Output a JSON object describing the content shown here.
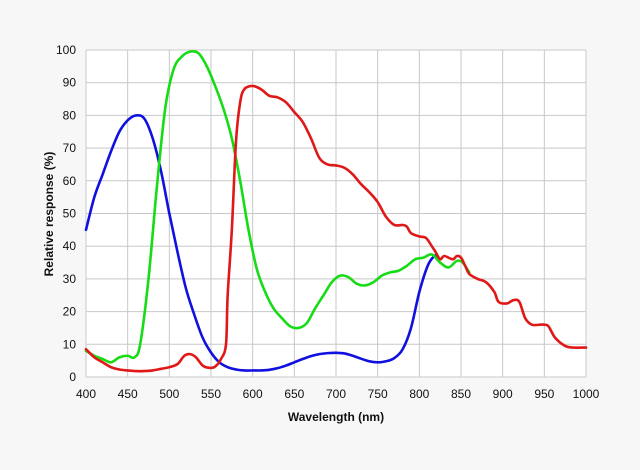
{
  "chart_data": {
    "type": "line",
    "title": "",
    "xlabel": "Wavelength (nm)",
    "ylabel": "Relative response (%)",
    "xlim": [
      400,
      1000
    ],
    "ylim": [
      0,
      100
    ],
    "grid": true,
    "legend": "none",
    "x_ticks": [
      "400",
      "450",
      "500",
      "550",
      "600",
      "650",
      "700",
      "750",
      "800",
      "850",
      "900",
      "950",
      "1000"
    ],
    "y_ticks": [
      "0",
      "10",
      "20",
      "30",
      "40",
      "50",
      "60",
      "70",
      "80",
      "90",
      "100"
    ],
    "series": [
      {
        "color": "#1010e0",
        "points": [
          [
            400,
            45
          ],
          [
            410,
            55
          ],
          [
            420,
            62
          ],
          [
            430,
            69
          ],
          [
            440,
            75
          ],
          [
            450,
            78.5
          ],
          [
            460,
            80
          ],
          [
            470,
            79
          ],
          [
            480,
            73
          ],
          [
            490,
            63
          ],
          [
            500,
            50
          ],
          [
            510,
            38
          ],
          [
            520,
            27
          ],
          [
            530,
            19
          ],
          [
            540,
            12
          ],
          [
            550,
            7.5
          ],
          [
            560,
            4.5
          ],
          [
            570,
            3
          ],
          [
            580,
            2.3
          ],
          [
            590,
            2
          ],
          [
            600,
            2
          ],
          [
            610,
            2
          ],
          [
            620,
            2.2
          ],
          [
            630,
            2.7
          ],
          [
            640,
            3.5
          ],
          [
            650,
            4.5
          ],
          [
            660,
            5.5
          ],
          [
            670,
            6.4
          ],
          [
            680,
            7
          ],
          [
            690,
            7.3
          ],
          [
            700,
            7.4
          ],
          [
            710,
            7.2
          ],
          [
            720,
            6.5
          ],
          [
            730,
            5.6
          ],
          [
            740,
            4.8
          ],
          [
            750,
            4.5
          ],
          [
            760,
            4.8
          ],
          [
            770,
            5.8
          ],
          [
            780,
            8.5
          ],
          [
            790,
            15
          ],
          [
            800,
            26
          ],
          [
            810,
            34
          ],
          [
            818,
            37
          ],
          [
            822,
            37
          ]
        ]
      },
      {
        "color": "#16dc16",
        "points": [
          [
            400,
            8
          ],
          [
            410,
            6.5
          ],
          [
            420,
            5.5
          ],
          [
            430,
            4.5
          ],
          [
            440,
            6
          ],
          [
            450,
            6.5
          ],
          [
            458,
            6
          ],
          [
            465,
            10
          ],
          [
            475,
            30
          ],
          [
            485,
            58
          ],
          [
            495,
            82
          ],
          [
            505,
            94
          ],
          [
            515,
            98
          ],
          [
            525,
            99.5
          ],
          [
            535,
            99
          ],
          [
            545,
            95
          ],
          [
            555,
            89
          ],
          [
            565,
            82
          ],
          [
            575,
            73
          ],
          [
            585,
            60
          ],
          [
            595,
            45
          ],
          [
            605,
            33
          ],
          [
            615,
            26
          ],
          [
            625,
            21
          ],
          [
            635,
            18
          ],
          [
            645,
            15.5
          ],
          [
            655,
            15
          ],
          [
            665,
            16.5
          ],
          [
            675,
            21
          ],
          [
            685,
            25
          ],
          [
            695,
            29
          ],
          [
            705,
            31
          ],
          [
            715,
            30.5
          ],
          [
            725,
            28.5
          ],
          [
            735,
            28
          ],
          [
            745,
            29
          ],
          [
            755,
            31
          ],
          [
            765,
            32
          ],
          [
            775,
            32.5
          ],
          [
            785,
            34
          ],
          [
            795,
            36
          ],
          [
            805,
            36.5
          ],
          [
            815,
            37.5
          ],
          [
            825,
            35
          ],
          [
            835,
            33.5
          ],
          [
            845,
            35.5
          ],
          [
            852,
            35
          ],
          [
            860,
            32
          ]
        ]
      },
      {
        "color": "#e01818",
        "points": [
          [
            400,
            8.5
          ],
          [
            410,
            6
          ],
          [
            420,
            4.5
          ],
          [
            430,
            3
          ],
          [
            440,
            2.3
          ],
          [
            450,
            2
          ],
          [
            460,
            1.8
          ],
          [
            470,
            1.8
          ],
          [
            480,
            2
          ],
          [
            490,
            2.5
          ],
          [
            500,
            3
          ],
          [
            510,
            4
          ],
          [
            518,
            6.5
          ],
          [
            525,
            7
          ],
          [
            532,
            6
          ],
          [
            540,
            3.5
          ],
          [
            548,
            2.8
          ],
          [
            555,
            3.2
          ],
          [
            562,
            5.5
          ],
          [
            568,
            10
          ],
          [
            570,
            25
          ],
          [
            575,
            45
          ],
          [
            580,
            72
          ],
          [
            585,
            84
          ],
          [
            590,
            88
          ],
          [
            600,
            89
          ],
          [
            610,
            88
          ],
          [
            620,
            86
          ],
          [
            630,
            85.5
          ],
          [
            640,
            84
          ],
          [
            650,
            81
          ],
          [
            660,
            78
          ],
          [
            670,
            73
          ],
          [
            680,
            67
          ],
          [
            690,
            65
          ],
          [
            700,
            64.7
          ],
          [
            710,
            64
          ],
          [
            720,
            62
          ],
          [
            730,
            59
          ],
          [
            740,
            56.5
          ],
          [
            750,
            53.5
          ],
          [
            760,
            49
          ],
          [
            770,
            46.5
          ],
          [
            780,
            46.5
          ],
          [
            785,
            46
          ],
          [
            790,
            44
          ],
          [
            800,
            43
          ],
          [
            808,
            42.5
          ],
          [
            815,
            40
          ],
          [
            820,
            38
          ],
          [
            825,
            36
          ],
          [
            830,
            37
          ],
          [
            840,
            36
          ],
          [
            845,
            37
          ],
          [
            850,
            36.5
          ],
          [
            855,
            34
          ],
          [
            860,
            31.5
          ],
          [
            870,
            30
          ],
          [
            880,
            29
          ],
          [
            890,
            26
          ],
          [
            895,
            23
          ],
          [
            905,
            22.5
          ],
          [
            913,
            23.5
          ],
          [
            920,
            23
          ],
          [
            927,
            18
          ],
          [
            935,
            16
          ],
          [
            945,
            16
          ],
          [
            950,
            16
          ],
          [
            955,
            15.5
          ],
          [
            963,
            12
          ],
          [
            975,
            9.5
          ],
          [
            985,
            9
          ],
          [
            1000,
            9
          ]
        ]
      }
    ]
  }
}
